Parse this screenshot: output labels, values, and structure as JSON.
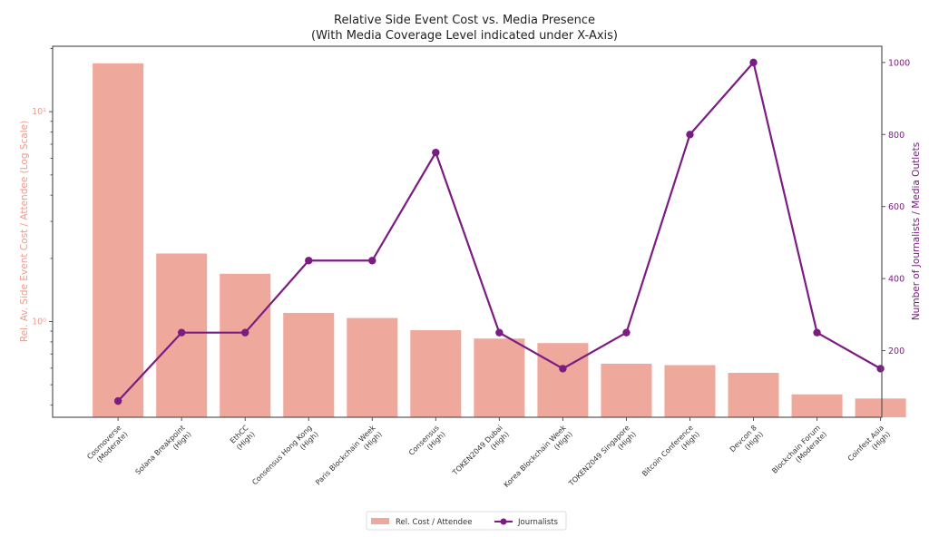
{
  "chart_data": {
    "type": "bar+line",
    "title": "Relative Side Event Cost vs. Media Presence",
    "subtitle": "(With Media Coverage Level indicated under X-Axis)",
    "categories": [
      "Cosmoverse",
      "Solana Breakpoint",
      "EthCC",
      "Consensus Hong Kong",
      "Paris Blockchain Week",
      "Consensus",
      "TOKEN2049 Dubai",
      "Korea Blockchain Week",
      "TOKEN2049 Singapore",
      "Bitcoin Conference",
      "Devcon 8",
      "Blockchain Forum",
      "Coinfest Asia"
    ],
    "coverage_levels": [
      "(Moderate)",
      "(High)",
      "(High)",
      "(High)",
      "(High)",
      "(High)",
      "(High)",
      "(High)",
      "(High)",
      "(High)",
      "(High)",
      "(Moderate)",
      "(High)"
    ],
    "ylabel_left": "Rel. Av. Side Event Cost / Attendee (Log Scale)",
    "ylabel_right": "Number of Journalists / Media Outlets",
    "left_scale": "log",
    "ylim_left": [
      0.35,
      20.5
    ],
    "left_ticks": [
      {
        "value": 1,
        "label": "10⁰"
      },
      {
        "value": 10,
        "label": "10¹"
      }
    ],
    "ylim_right": [
      15,
      1045
    ],
    "right_ticks": [
      200,
      400,
      600,
      800,
      1000
    ],
    "grid": false,
    "legend_position": "bottom-center",
    "series": [
      {
        "name": "Rel. Cost / Attendee",
        "kind": "bar",
        "axis": "left",
        "color": "#efa89c",
        "values": [
          17.0,
          2.11,
          1.69,
          1.1,
          1.04,
          0.91,
          0.83,
          0.79,
          0.63,
          0.62,
          0.57,
          0.45,
          0.43
        ]
      },
      {
        "name": "Journalists",
        "kind": "line",
        "axis": "right",
        "color": "#7b1c82",
        "values": [
          60,
          250,
          250,
          450,
          450,
          750,
          250,
          150,
          250,
          800,
          1000,
          250,
          150
        ]
      }
    ],
    "colors": {
      "left_axis": "#f2998a",
      "right_axis": "#7b1c82"
    }
  }
}
